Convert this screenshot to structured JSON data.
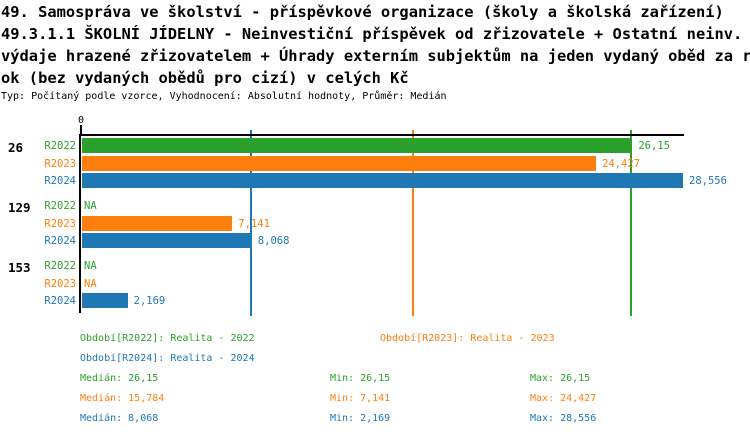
{
  "title": {
    "lines": [
      "49. Samospráva ve školství - příspěvkové organizace (školy a školská zařízení)",
      "49.3.1.1 ŠKOLNÍ JÍDELNY - Neinvestiční příspěvek od zřizovatele + Ostatní neinv.",
      "výdaje hrazené zřizovatelem + Úhrady externím subjektům na jeden vydaný oběd za r",
      "ok (bez vydaných obědů pro cizí) v celých Kč"
    ],
    "subtitle": "Typ: Počítaný podle vzorce, Vyhodnocení: Absolutní hodnoty, Průměr: Medián"
  },
  "colors": {
    "R2022": "#2ca02c",
    "R2023": "#ff7f0e",
    "R2024": "#1f77b4",
    "axis": "#000000"
  },
  "chart_data": {
    "type": "bar",
    "orientation": "horizontal",
    "unit": "Kč",
    "grid": false,
    "x_axis": {
      "origin_tick_label": "0",
      "min": 0,
      "max": 28.556
    },
    "series_labels": [
      "R2022",
      "R2023",
      "R2024"
    ],
    "groups": [
      {
        "label": "26",
        "bars": [
          {
            "series": "R2022",
            "value": 26.15,
            "display": "26,15"
          },
          {
            "series": "R2023",
            "value": 24.427,
            "display": "24,427"
          },
          {
            "series": "R2024",
            "value": 28.556,
            "display": "28,556"
          }
        ]
      },
      {
        "label": "129",
        "bars": [
          {
            "series": "R2022",
            "value": null,
            "display": "NA"
          },
          {
            "series": "R2023",
            "value": 7.141,
            "display": "7,141"
          },
          {
            "series": "R2024",
            "value": 8.068,
            "display": "8,068"
          }
        ]
      },
      {
        "label": "153",
        "bars": [
          {
            "series": "R2022",
            "value": null,
            "display": "NA"
          },
          {
            "series": "R2023",
            "value": null,
            "display": "NA"
          },
          {
            "series": "R2024",
            "value": 2.169,
            "display": "2,169"
          }
        ]
      }
    ],
    "median_lines": [
      {
        "series": "R2022",
        "value": 26.15
      },
      {
        "series": "R2023",
        "value": 15.784
      },
      {
        "series": "R2024",
        "value": 8.068
      }
    ]
  },
  "legend": {
    "r2022": "Období[R2022]: Realita - 2022",
    "r2023": "Období[R2023]: Realita - 2023",
    "r2024": "Období[R2024]: Realita - 2024"
  },
  "stats": {
    "rows": [
      {
        "series": "R2022",
        "median": "Medián: 26,15",
        "min": "Min: 26,15",
        "max": "Max: 26,15"
      },
      {
        "series": "R2023",
        "median": "Medián: 15,784",
        "min": "Min: 7,141",
        "max": "Max: 24,427"
      },
      {
        "series": "R2024",
        "median": "Medián: 8,068",
        "min": "Min: 2,169",
        "max": "Max: 28,556"
      }
    ]
  }
}
